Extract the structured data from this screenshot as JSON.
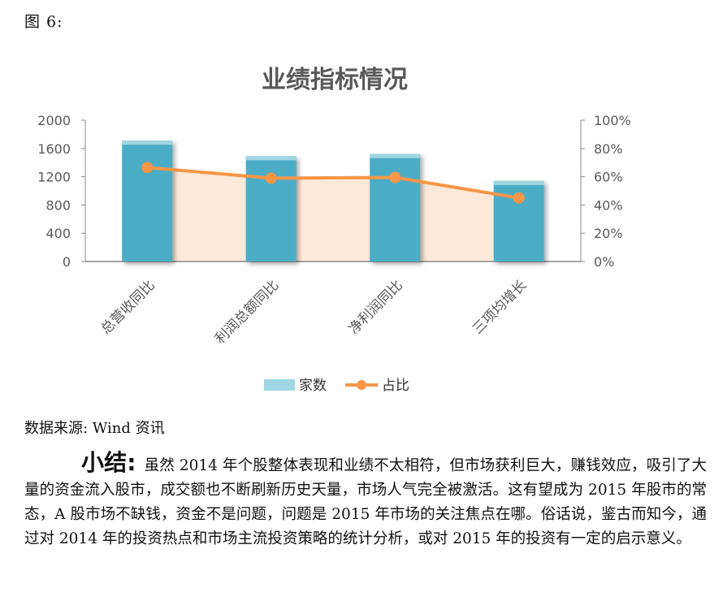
{
  "figure_label": "图 6:",
  "source_note": "数据来源: Wind 资讯",
  "summary": {
    "lead": "小结:",
    "text": "虽然 2014 年个股整体表现和业绩不太相符，但市场获利巨大，赚钱效应，吸引了大量的资金流入股市，成交额也不断刷新历史天量，市场人气完全被激活。这有望成为 2015 年股市的常态，A 股市场不缺钱，资金不是问题，问题是 2015 年市场的关注焦点在哪。俗话说，鉴古而知今，通过对 2014 年的投资热点和市场主流投资策略的统计分析，或对 2015 年的投资有一定的启示意义。"
  },
  "colors": {
    "bar": "#4bacc6",
    "bar_top": "#9fd6e3",
    "line": "#f79646",
    "area": "#fde9d9",
    "axis": "#888888"
  },
  "chart_data": {
    "type": "bar",
    "title": "业绩指标情况",
    "categories": [
      "总营收同比",
      "利润总额同比",
      "净利润同比",
      "三项均增长"
    ],
    "series": [
      {
        "name": "家数",
        "type": "bar",
        "axis": "left",
        "values": [
          1710,
          1490,
          1520,
          1140
        ]
      },
      {
        "name": "占比",
        "type": "line",
        "axis": "right",
        "values": [
          66.5,
          59,
          59.5,
          45
        ]
      }
    ],
    "y_left": {
      "range": [
        0,
        2000
      ],
      "ticks": [
        "0",
        "400",
        "800",
        "1200",
        "1600",
        "2000"
      ]
    },
    "y_right": {
      "range": [
        0,
        100
      ],
      "ticks": [
        "0%",
        "20%",
        "40%",
        "60%",
        "80%",
        "100%"
      ]
    },
    "legend_position": "bottom",
    "grid": false
  }
}
